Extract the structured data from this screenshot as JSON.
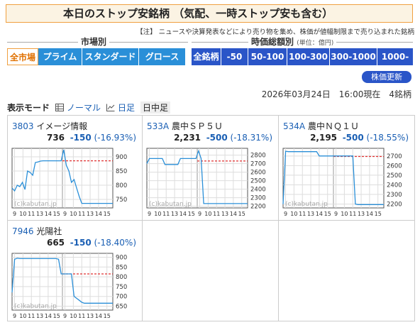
{
  "page": {
    "title": "本日のストップ安銘柄 （気配、一時ストップ安も含む）",
    "note": "【注】 ニュースや決算発表などにより売り物を集め、株価が値幅制限まで売り込まれた銘柄",
    "as_of": "2026年03月24日　16:00現在　4銘柄",
    "refresh_label": "株価更新"
  },
  "market_filter": {
    "heading": "市場別",
    "options": [
      "全市場",
      "プライム",
      "スタンダード",
      "グロース"
    ],
    "selected": 0
  },
  "cap_filter": {
    "heading": "時価総額別",
    "unit": "(単位：億円)",
    "options": [
      "全銘柄",
      "-50",
      "50-100",
      "100-300",
      "300-1000",
      "1000-"
    ],
    "selected": 0
  },
  "display_mode": {
    "label": "表示モード",
    "options": [
      "ノーマル",
      "日足",
      "日中足"
    ],
    "selected": 2
  },
  "stocks": [
    {
      "code": "3803",
      "name": "イメージ情報",
      "price": "736",
      "change": "-150",
      "pct": "(-16.93%)"
    },
    {
      "code": "533A",
      "name": "農中ＳＰ５Ｕ",
      "price": "2,231",
      "change": "-500",
      "pct": "(-18.31%)"
    },
    {
      "code": "534A",
      "name": "農中ＮＱ１Ｕ",
      "price": "2,195",
      "change": "-500",
      "pct": "(-18.55%)"
    },
    {
      "code": "7946",
      "name": "光陽社",
      "price": "665",
      "change": "-150",
      "pct": "(-18.40%)"
    }
  ],
  "chart_data": [
    {
      "type": "line",
      "ylim": [
        720,
        930
      ],
      "yticks": [
        750,
        800,
        850,
        900
      ],
      "ref": 886,
      "watermark": "(c)kabutan.jp",
      "xticks": [
        "9",
        "10",
        "11",
        "13",
        "14",
        "15",
        "9",
        "10",
        "11",
        "13",
        "14",
        "15"
      ],
      "values": [
        790,
        780,
        800,
        795,
        810,
        785,
        850,
        845,
        835,
        880,
        882,
        885,
        886,
        886,
        886,
        886,
        886,
        886,
        886,
        886,
        925,
        870,
        850,
        810,
        820,
        790,
        760,
        736,
        736,
        736,
        736,
        736,
        736,
        736,
        736,
        736,
        736,
        736,
        736,
        736
      ]
    },
    {
      "type": "line",
      "ylim": [
        2180,
        2880
      ],
      "yticks": [
        2200,
        2300,
        2400,
        2500,
        2600,
        2700,
        2800
      ],
      "ref": 2731,
      "watermark": "(c)kabutan.jp",
      "xticks": [
        "9",
        "10",
        "11",
        "13",
        "14",
        "15",
        "9",
        "10",
        "11",
        "13",
        "14",
        "15"
      ],
      "values": [
        2700,
        2760,
        2760,
        2760,
        2760,
        2760,
        2760,
        2690,
        2690,
        2690,
        2690,
        2690,
        2690,
        2760,
        2760,
        2760,
        2760,
        2760,
        2760,
        2760,
        2850,
        2760,
        2231,
        2231,
        2231,
        2231,
        2231,
        2231,
        2231,
        2231,
        2231,
        2231,
        2231,
        2231,
        2231,
        2231,
        2231,
        2231,
        2231,
        2231
      ]
    },
    {
      "type": "line",
      "ylim": [
        2160,
        2780
      ],
      "yticks": [
        2200,
        2300,
        2400,
        2500,
        2600,
        2700
      ],
      "ref": 2695,
      "watermark": "(c)kabutan.jp",
      "xticks": [
        "9",
        "10",
        "11",
        "13",
        "14",
        "15",
        "9",
        "10",
        "11",
        "13",
        "14",
        "15"
      ],
      "values": [
        2200,
        2750,
        2745,
        2745,
        2745,
        2745,
        2745,
        2745,
        2745,
        2745,
        2745,
        2745,
        2745,
        2745,
        2700,
        2700,
        2700,
        2700,
        2700,
        2700,
        2700,
        2700,
        2700,
        2700,
        2700,
        2700,
        2700,
        2700,
        2200,
        2195,
        2195,
        2195,
        2195,
        2195,
        2195,
        2195,
        2195,
        2195,
        2195,
        2195
      ]
    },
    {
      "type": "line",
      "ylim": [
        630,
        920
      ],
      "yticks": [
        650,
        700,
        750,
        800,
        850,
        900
      ],
      "ref": 815,
      "watermark": "(c)kabutan.jp",
      "xticks": [
        "9",
        "10",
        "11",
        "13",
        "14",
        "15",
        "9",
        "10",
        "11",
        "13",
        "14",
        "15"
      ],
      "values": [
        720,
        890,
        895,
        893,
        893,
        893,
        893,
        893,
        893,
        893,
        893,
        893,
        893,
        893,
        893,
        893,
        893,
        893,
        890,
        815,
        815,
        815,
        815,
        815,
        700,
        690,
        680,
        670,
        665,
        665,
        665,
        665,
        665,
        665,
        665,
        665,
        665,
        665,
        665,
        665
      ]
    }
  ],
  "colors": {
    "price_line": "#2a8fd8",
    "ref_line": "#e03030",
    "accent": "#2a55c8"
  }
}
